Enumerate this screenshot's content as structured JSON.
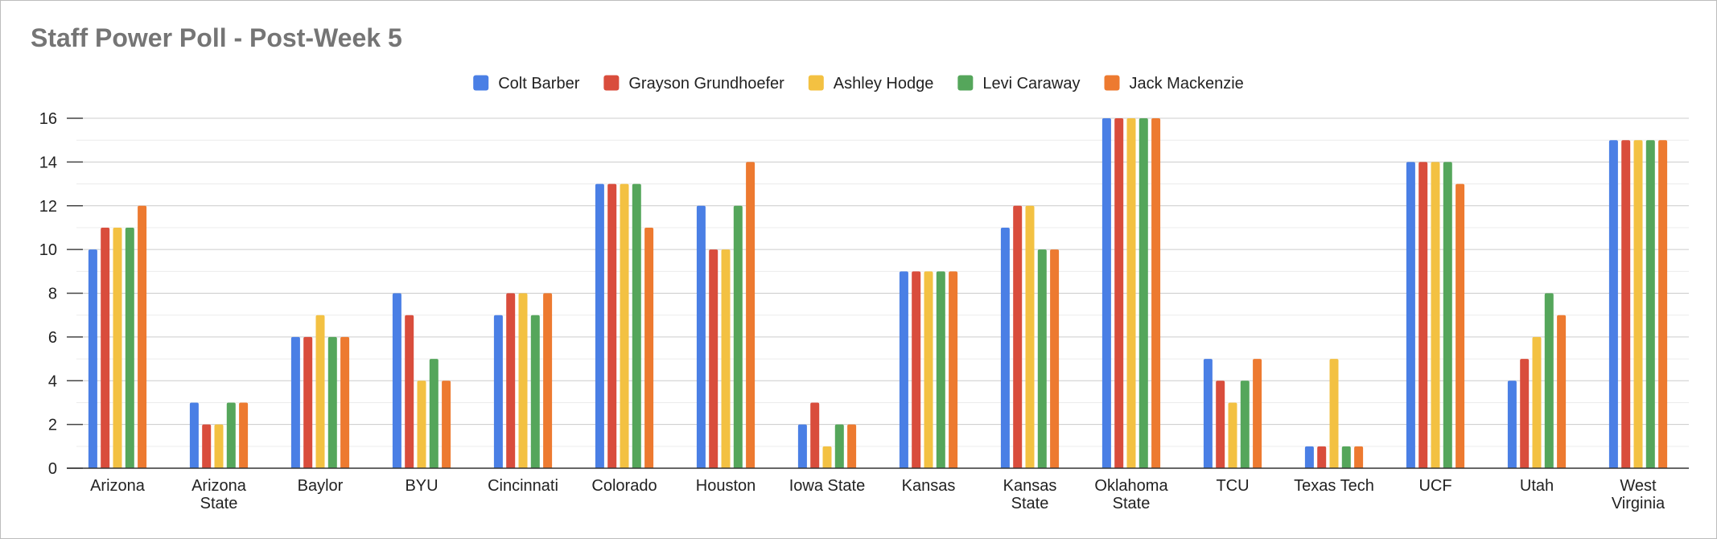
{
  "chart_data": {
    "type": "bar",
    "title": "Staff Power Poll - Post-Week 5",
    "xlabel": "",
    "ylabel": "",
    "ylim": [
      0,
      16
    ],
    "yticks": [
      "0",
      "2",
      "4",
      "6",
      "8",
      "10",
      "12",
      "14",
      "16"
    ],
    "grid": true,
    "legend_position": "top",
    "categories": [
      [
        "Arizona"
      ],
      [
        "Arizona",
        "State"
      ],
      [
        "Baylor"
      ],
      [
        "BYU"
      ],
      [
        "Cincinnati"
      ],
      [
        "Colorado"
      ],
      [
        "Houston"
      ],
      [
        "Iowa State"
      ],
      [
        "Kansas"
      ],
      [
        "Kansas",
        "State"
      ],
      [
        "Oklahoma",
        "State"
      ],
      [
        "TCU"
      ],
      [
        "Texas Tech"
      ],
      [
        "UCF"
      ],
      [
        "Utah"
      ],
      [
        "West",
        "Virginia"
      ]
    ],
    "series": [
      {
        "name": "Colt Barber",
        "color": "#4a7fe5",
        "values": [
          10,
          3,
          6,
          8,
          7,
          13,
          12,
          2,
          9,
          11,
          16,
          5,
          1,
          14,
          4,
          15
        ]
      },
      {
        "name": "Grayson Grundhoefer",
        "color": "#d94d3c",
        "values": [
          11,
          2,
          6,
          7,
          8,
          13,
          10,
          3,
          9,
          12,
          16,
          4,
          1,
          14,
          5,
          15
        ]
      },
      {
        "name": "Ashley Hodge",
        "color": "#f3c142",
        "values": [
          11,
          2,
          7,
          4,
          8,
          13,
          10,
          1,
          9,
          12,
          16,
          3,
          5,
          14,
          6,
          15
        ]
      },
      {
        "name": "Levi Caraway",
        "color": "#55a65b",
        "values": [
          11,
          3,
          6,
          5,
          7,
          13,
          12,
          2,
          9,
          10,
          16,
          4,
          1,
          14,
          8,
          15
        ]
      },
      {
        "name": "Jack Mackenzie",
        "color": "#ed7a30",
        "values": [
          12,
          3,
          6,
          4,
          8,
          11,
          14,
          2,
          9,
          10,
          16,
          5,
          1,
          13,
          7,
          15
        ]
      }
    ]
  }
}
